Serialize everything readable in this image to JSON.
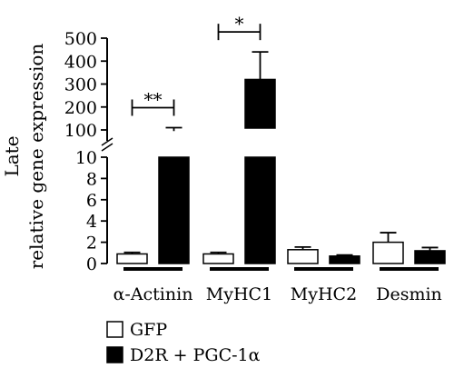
{
  "chart_data": {
    "type": "bar",
    "ylabel_lines": [
      "Late",
      "relative gene expression"
    ],
    "categories": [
      "α-Actinin",
      "MyHC1",
      "MyHC2",
      "Desmin"
    ],
    "series": [
      {
        "name": "GFP",
        "fill": "#ffffff",
        "values": [
          0.9,
          0.9,
          1.3,
          2.0
        ],
        "errors": [
          0.15,
          0.15,
          0.25,
          0.9
        ]
      },
      {
        "name": "D2R + PGC-1α",
        "fill": "#000000",
        "values": [
          95,
          320,
          0.7,
          1.2
        ],
        "errors": [
          15,
          120,
          0.1,
          0.3
        ]
      }
    ],
    "y_axis": {
      "broken": true,
      "lower_segment": {
        "range": [
          0,
          10
        ],
        "ticks": [
          "0",
          "2",
          "4",
          "6",
          "8",
          "10"
        ]
      },
      "upper_segment": {
        "range": [
          100,
          500
        ],
        "ticks": [
          "100",
          "200",
          "300",
          "400",
          "500"
        ]
      }
    },
    "significance": [
      {
        "category": "α-Actinin",
        "label": "**"
      },
      {
        "category": "MyHC1",
        "label": "*"
      }
    ],
    "legend_position": "bottom-left",
    "grid": false
  }
}
